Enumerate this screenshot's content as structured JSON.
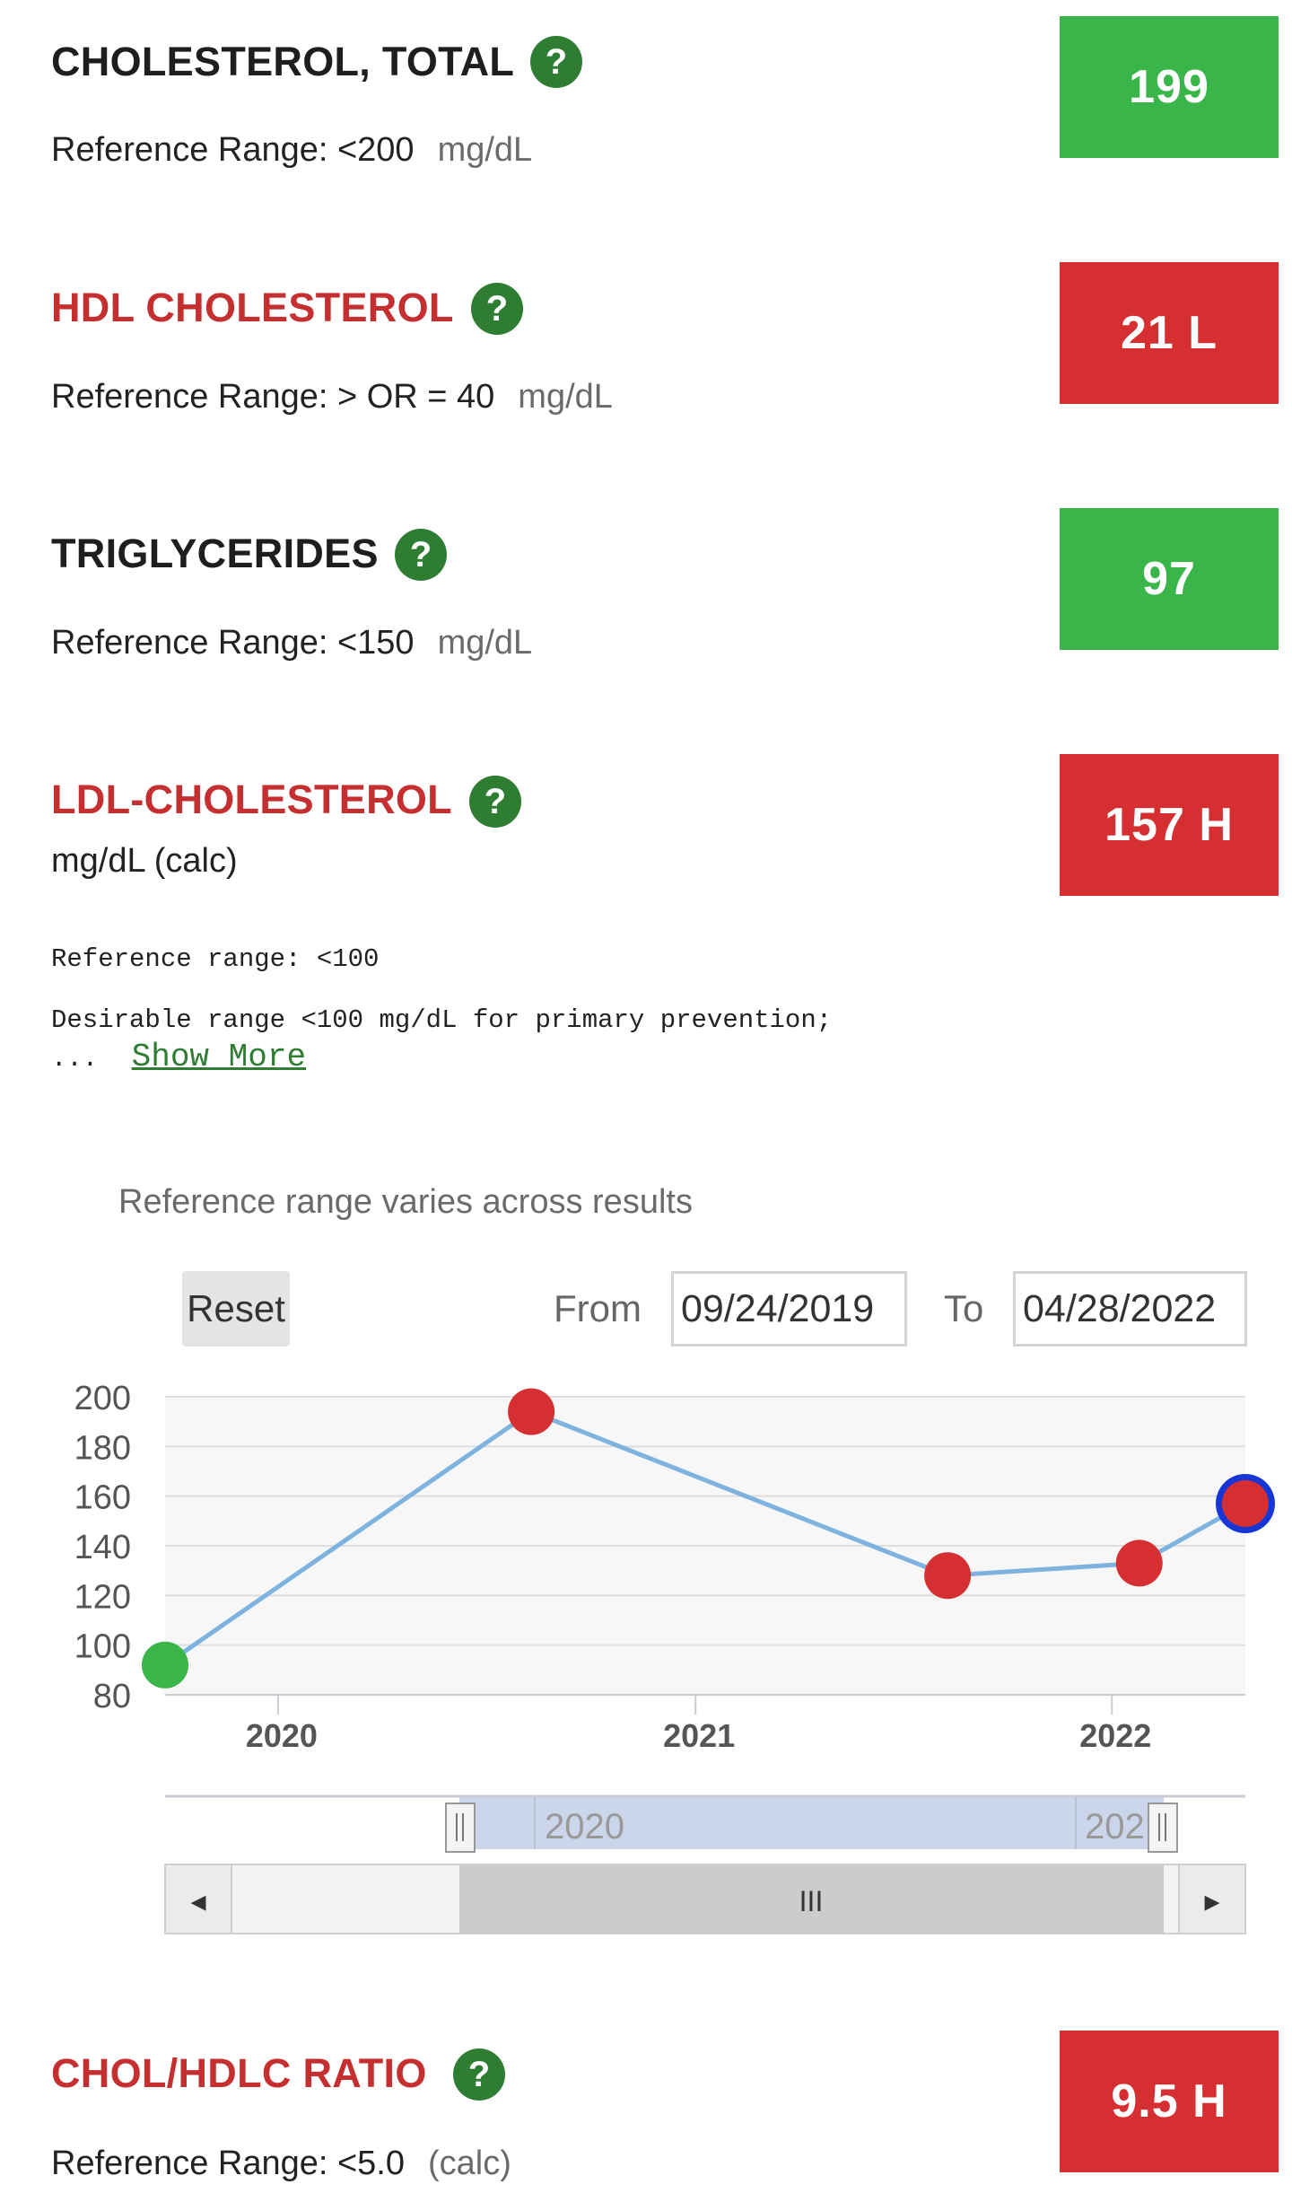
{
  "tests": [
    {
      "name": "CHOLESTEROL, TOTAL",
      "status": "normal",
      "value": "199",
      "reference_label": "Reference Range: <200",
      "unit": "mg/dL"
    },
    {
      "name": "HDL CHOLESTEROL",
      "status": "abnormal",
      "value": "21 L",
      "reference_label": "Reference Range: > OR = 40",
      "unit": "mg/dL"
    },
    {
      "name": "TRIGLYCERIDES",
      "status": "normal",
      "value": "97",
      "reference_label": "Reference Range: <150",
      "unit": "mg/dL"
    },
    {
      "name": "LDL-CHOLESTEROL",
      "status": "abnormal",
      "value": "157 H",
      "unit_line": "mg/dL (calc)",
      "reference_line": "Reference range: <100",
      "note_line": "Desirable range <100 mg/dL for primary prevention;",
      "ellipsis": "...",
      "show_more": "Show More"
    },
    {
      "name": "CHOL/HDLC RATIO",
      "status": "abnormal",
      "value": "9.5 H",
      "reference_label": "Reference Range: <5.0",
      "unit": "(calc)"
    }
  ],
  "help_symbol": "?",
  "trend": {
    "varies_note": "Reference range varies across results",
    "reset_label": "Reset",
    "from_label": "From",
    "from_value": "09/24/2019",
    "to_label": "To",
    "to_value": "04/28/2022",
    "navigator_labels": [
      "2020",
      "202"
    ],
    "scroll_left_glyph": "◂",
    "scroll_right_glyph": "▸",
    "scroll_grip_glyph": "III",
    "handle_glyph": "II"
  },
  "colors": {
    "normal": "#39b54a",
    "abnormal": "#d62f32",
    "help": "#2e7d32",
    "line": "#7eb3e0",
    "selected_ring": "#1736d6"
  },
  "chart_data": {
    "type": "line",
    "title": "",
    "xlabel": "",
    "ylabel": "",
    "ylim": [
      80,
      200
    ],
    "yticks": [
      80,
      100,
      120,
      140,
      160,
      180,
      200
    ],
    "xticks": [
      {
        "date": "2020-01-01",
        "label": "2020"
      },
      {
        "date": "2021-01-01",
        "label": "2021"
      },
      {
        "date": "2022-01-01",
        "label": "2022"
      }
    ],
    "xlim": [
      "2019-09-24",
      "2022-04-28"
    ],
    "series": [
      {
        "points": [
          {
            "date": "2019-09-24",
            "value": 92,
            "flag": "normal"
          },
          {
            "date": "2020-08-10",
            "value": 194,
            "flag": "abnormal"
          },
          {
            "date": "2021-08-10",
            "value": 128,
            "flag": "abnormal"
          },
          {
            "date": "2022-01-25",
            "value": 133,
            "flag": "abnormal"
          },
          {
            "date": "2022-04-28",
            "value": 157,
            "flag": "abnormal",
            "selected": true
          }
        ]
      }
    ]
  }
}
